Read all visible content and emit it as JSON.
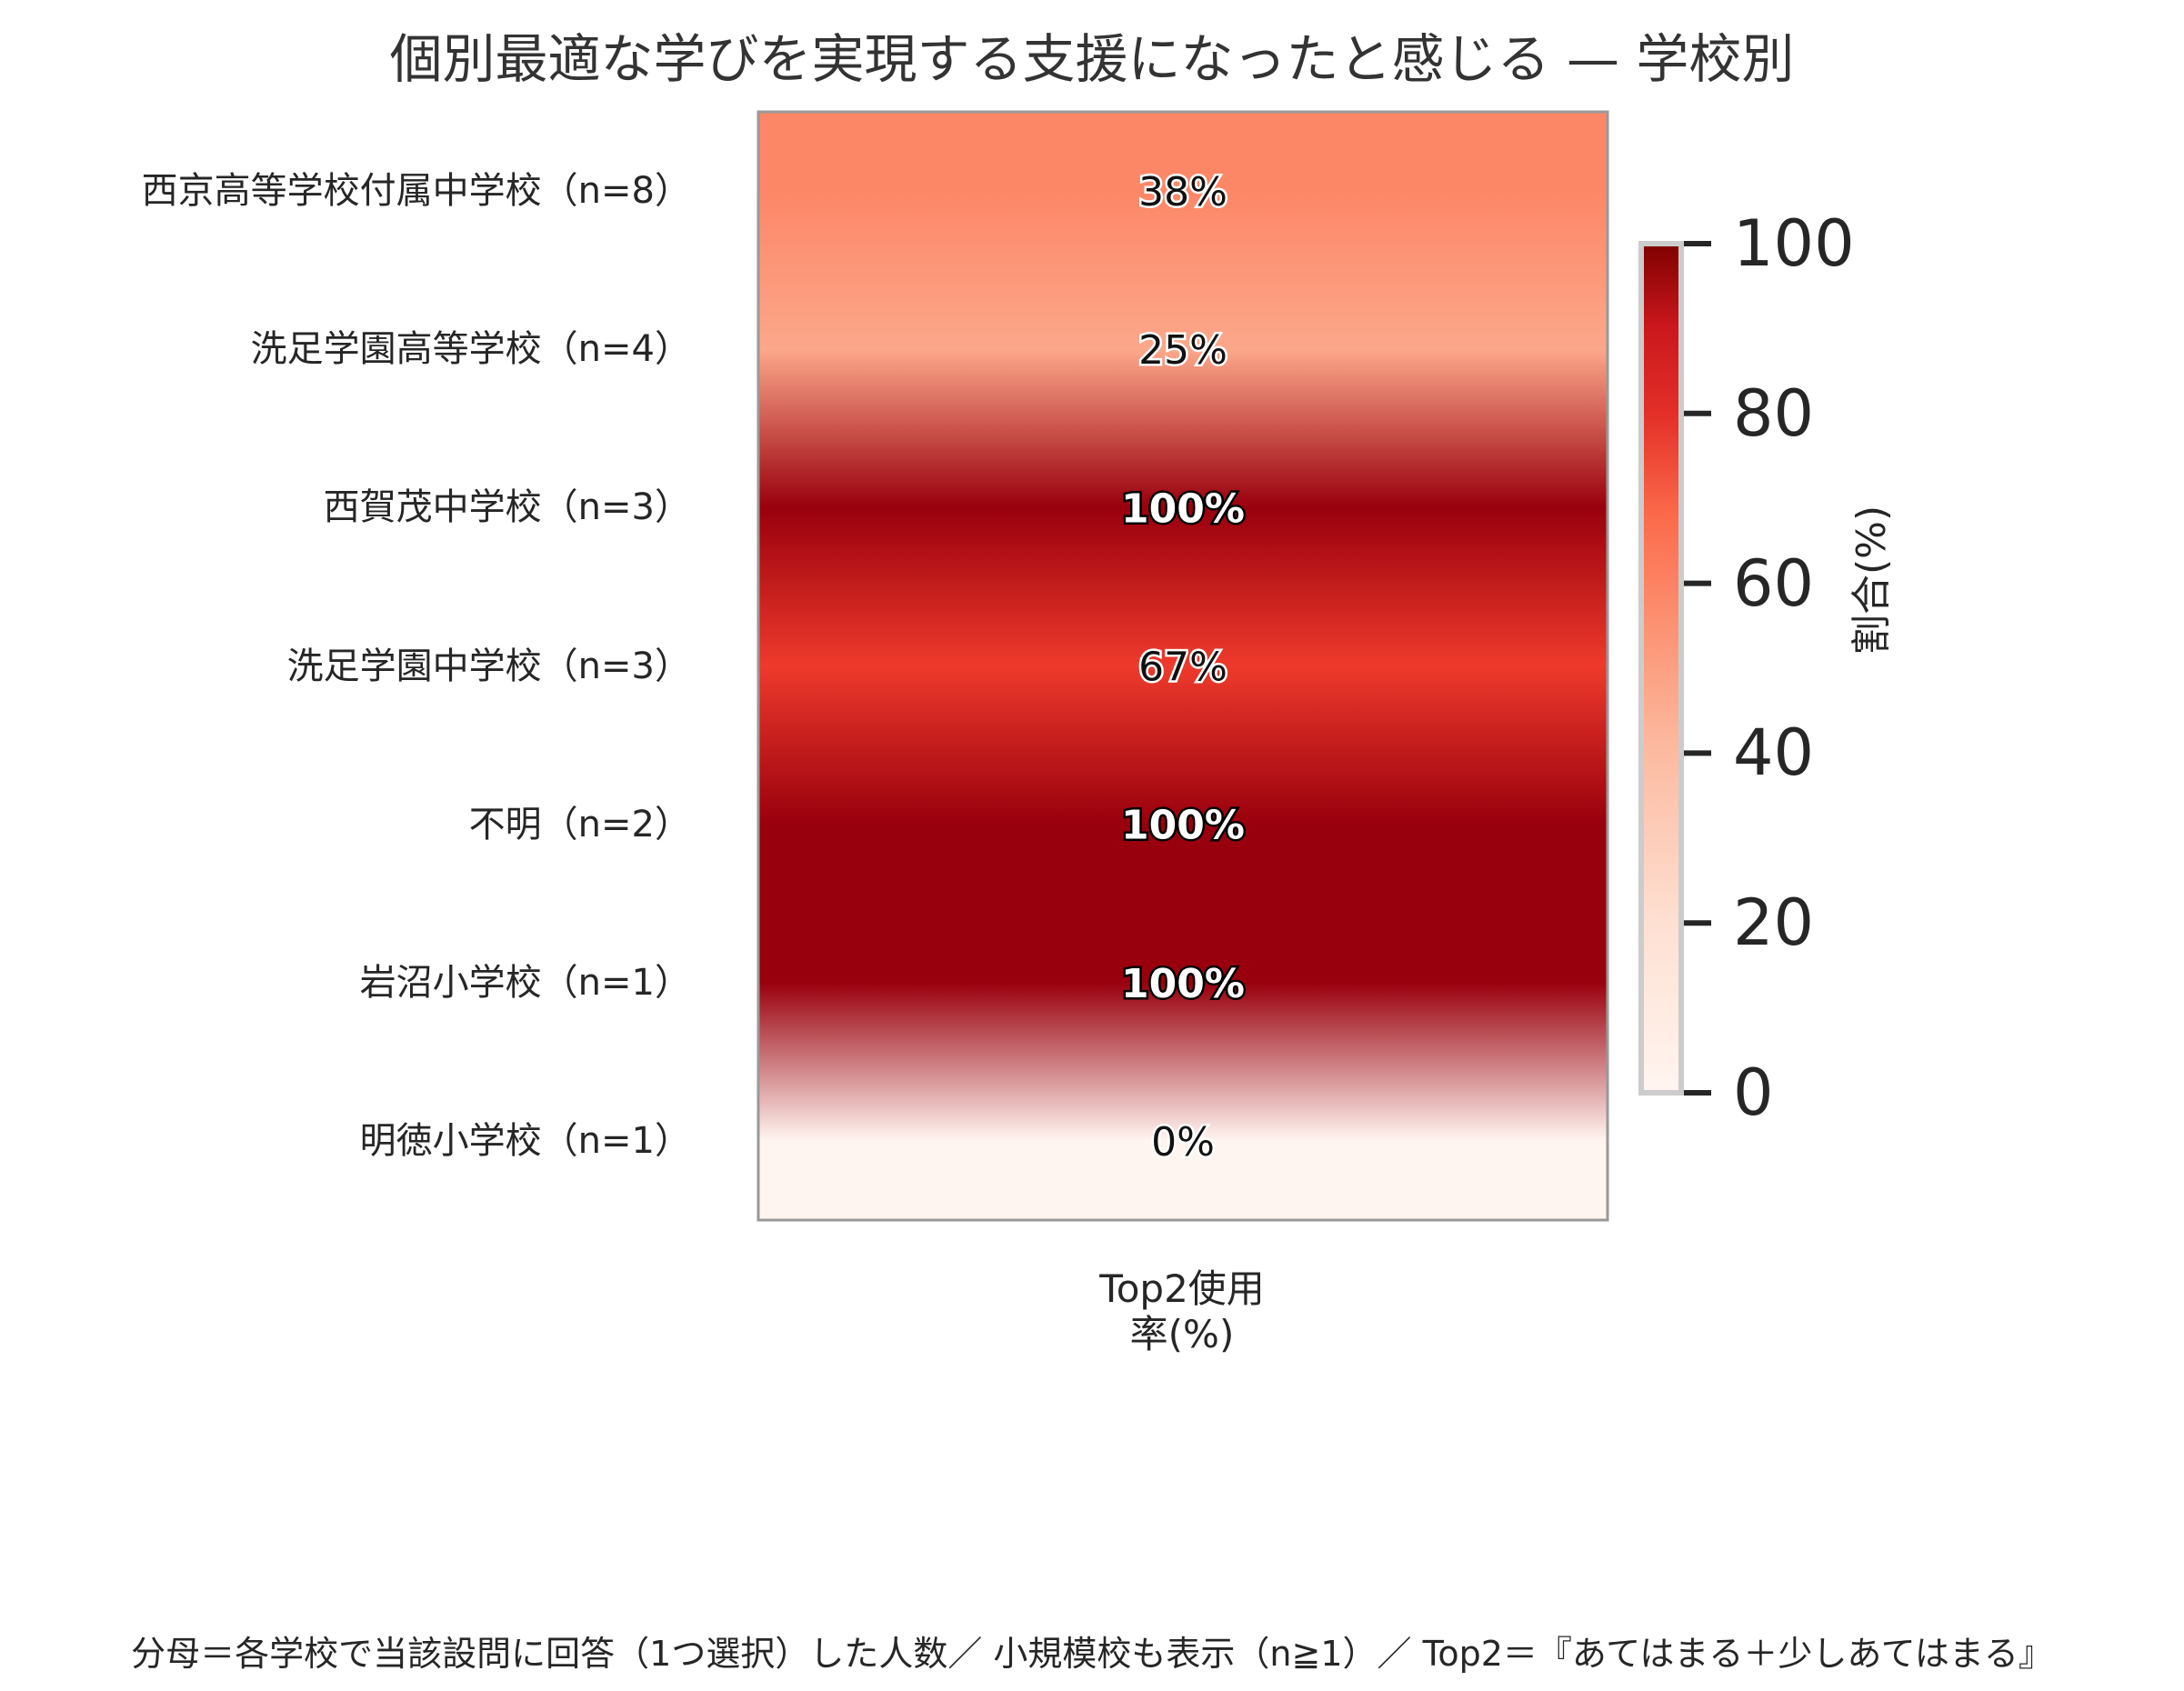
{
  "chart_data": {
    "type": "heatmap",
    "title": "個別最適な学びを実現する支援になったと感じる — 学校別",
    "x_categories": [
      "Top2使用率(%)"
    ],
    "x_tick_lines": [
      "Top2使用",
      "率(%)"
    ],
    "rows": [
      {
        "label": "西京高等学校付属中学校（n=8）",
        "value": 38,
        "display": "38%"
      },
      {
        "label": "洗足学園高等学校（n=4）",
        "value": 25,
        "display": "25%"
      },
      {
        "label": "西賀茂中学校（n=3）",
        "value": 100,
        "display": "100%"
      },
      {
        "label": "洗足学園中学校（n=3）",
        "value": 67,
        "display": "67%"
      },
      {
        "label": "不明（n=2）",
        "value": 100,
        "display": "100%"
      },
      {
        "label": "岩沼小学校（n=1）",
        "value": 100,
        "display": "100%"
      },
      {
        "label": "明徳小学校（n=1）",
        "value": 0,
        "display": "0%"
      }
    ],
    "colorbar": {
      "label": "割合(%)",
      "range": [
        0,
        100
      ],
      "ticks": [
        0,
        20,
        40,
        60,
        80,
        100
      ],
      "tick_labels": [
        "0",
        "20",
        "40",
        "60",
        "80",
        "100"
      ]
    },
    "colormap": [
      "#fff5f0",
      "#fcbba1",
      "#fc9272",
      "#fb6a4a",
      "#ef3b2c",
      "#cb181d",
      "#99000d"
    ],
    "footnote": "分母＝各学校で当該設問に回答（1つ選択）した人数／ 小規模校も表示（n≧1）／ Top2＝『あてはまる＋少しあてはまる』"
  }
}
